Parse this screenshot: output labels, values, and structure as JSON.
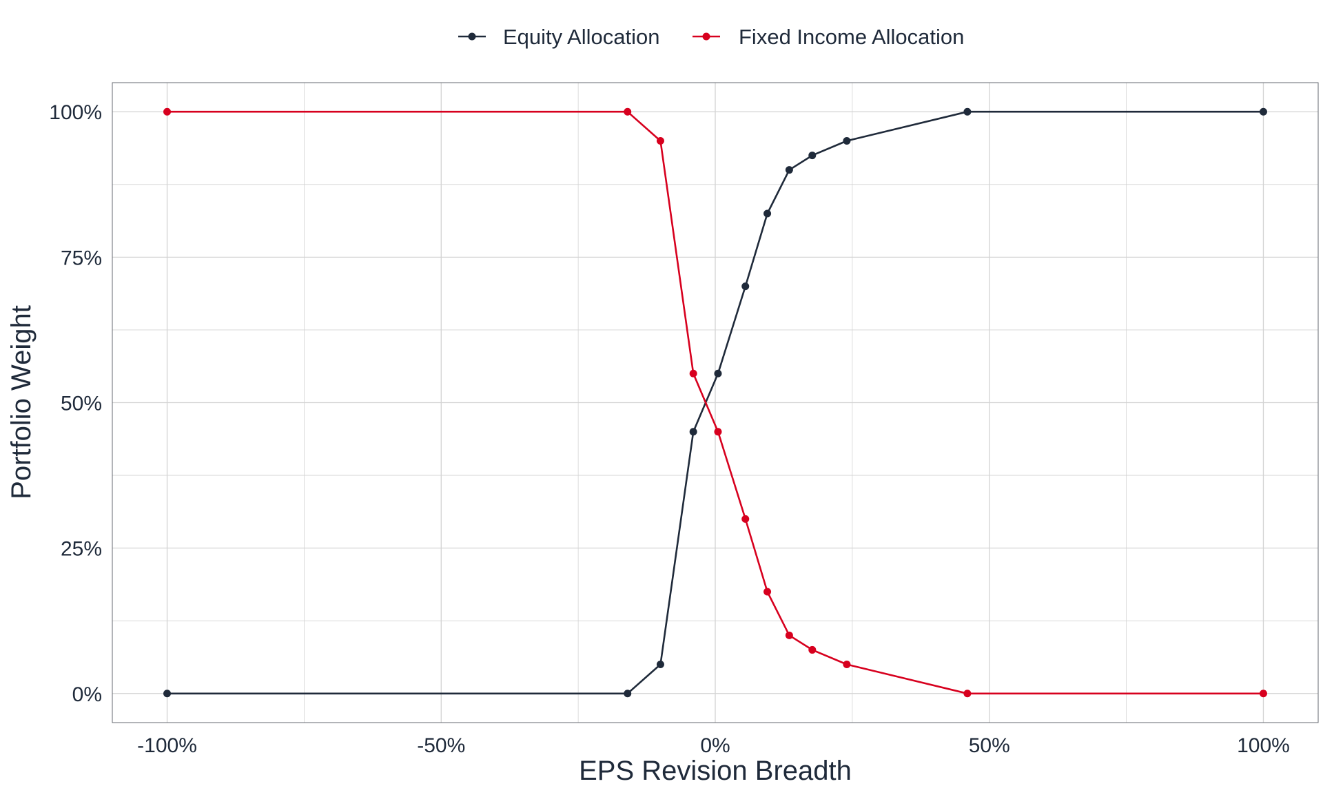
{
  "chart_data": {
    "type": "line",
    "title": "",
    "xlabel": "EPS Revision Breadth",
    "ylabel": "Portfolio Weight",
    "xlim": [
      -1.1,
      1.1
    ],
    "ylim": [
      -0.05,
      1.05
    ],
    "x_ticks": [
      -1.0,
      -0.5,
      0.0,
      0.5,
      1.0
    ],
    "x_tick_labels": [
      "-100%",
      "-50%",
      "0%",
      "50%",
      "100%"
    ],
    "y_ticks": [
      0.0,
      0.25,
      0.5,
      0.75,
      1.0
    ],
    "y_tick_labels": [
      "0%",
      "25%",
      "50%",
      "75%",
      "100%"
    ],
    "grid": true,
    "legend_position": "top",
    "x": [
      -1.0,
      -0.16,
      -0.1,
      -0.04,
      0.005,
      0.055,
      0.095,
      0.135,
      0.177,
      0.24,
      0.46,
      1.0
    ],
    "series": [
      {
        "name": "Equity Allocation",
        "color": "#1f2a3a",
        "values": [
          0.0,
          0.0,
          0.05,
          0.45,
          0.55,
          0.7,
          0.825,
          0.9,
          0.925,
          0.95,
          1.0,
          1.0
        ]
      },
      {
        "name": "Fixed Income Allocation",
        "color": "#d7001e",
        "values": [
          1.0,
          1.0,
          0.95,
          0.55,
          0.45,
          0.3,
          0.175,
          0.1,
          0.075,
          0.05,
          0.0,
          0.0
        ]
      }
    ]
  }
}
